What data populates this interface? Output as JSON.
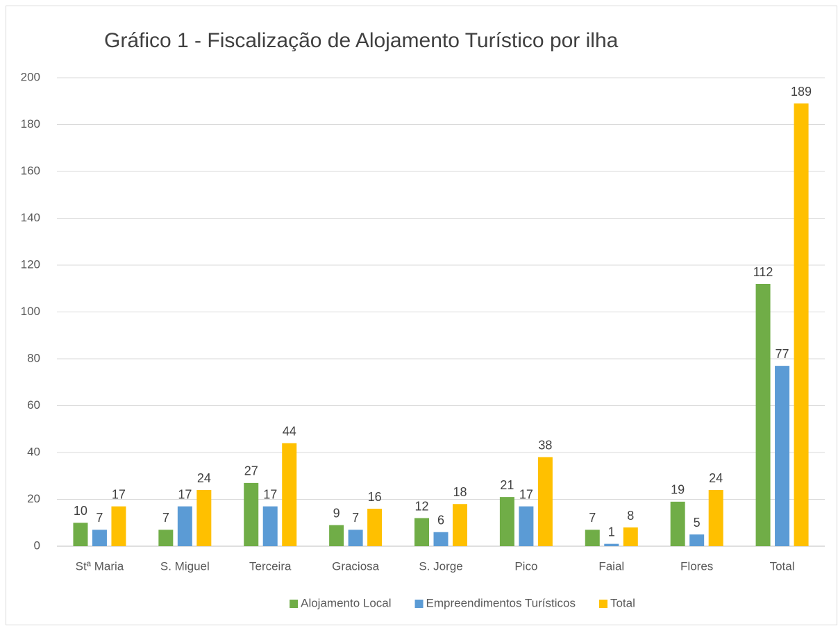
{
  "chart_data": {
    "type": "bar",
    "title": "Gráfico 1 - Fiscalização de Alojamento Turístico por ilha",
    "categories": [
      "Stª Maria",
      "S. Miguel",
      "Terceira",
      "Graciosa",
      "S. Jorge",
      "Pico",
      "Faial",
      "Flores",
      "Total"
    ],
    "series": [
      {
        "name": "Alojamento Local",
        "color": "#70ad47",
        "values": [
          10,
          7,
          27,
          9,
          12,
          21,
          7,
          19,
          112
        ]
      },
      {
        "name": "Empreendimentos Turísticos",
        "color": "#5b9bd5",
        "values": [
          7,
          17,
          17,
          7,
          6,
          17,
          1,
          5,
          77
        ]
      },
      {
        "name": "Total",
        "color": "#ffc000",
        "values": [
          17,
          24,
          44,
          16,
          18,
          38,
          8,
          24,
          189
        ]
      }
    ],
    "ylim": [
      0,
      200
    ],
    "yticks": [
      0,
      20,
      40,
      60,
      80,
      100,
      120,
      140,
      160,
      180,
      200
    ],
    "grid": true,
    "legend": "bottom"
  }
}
